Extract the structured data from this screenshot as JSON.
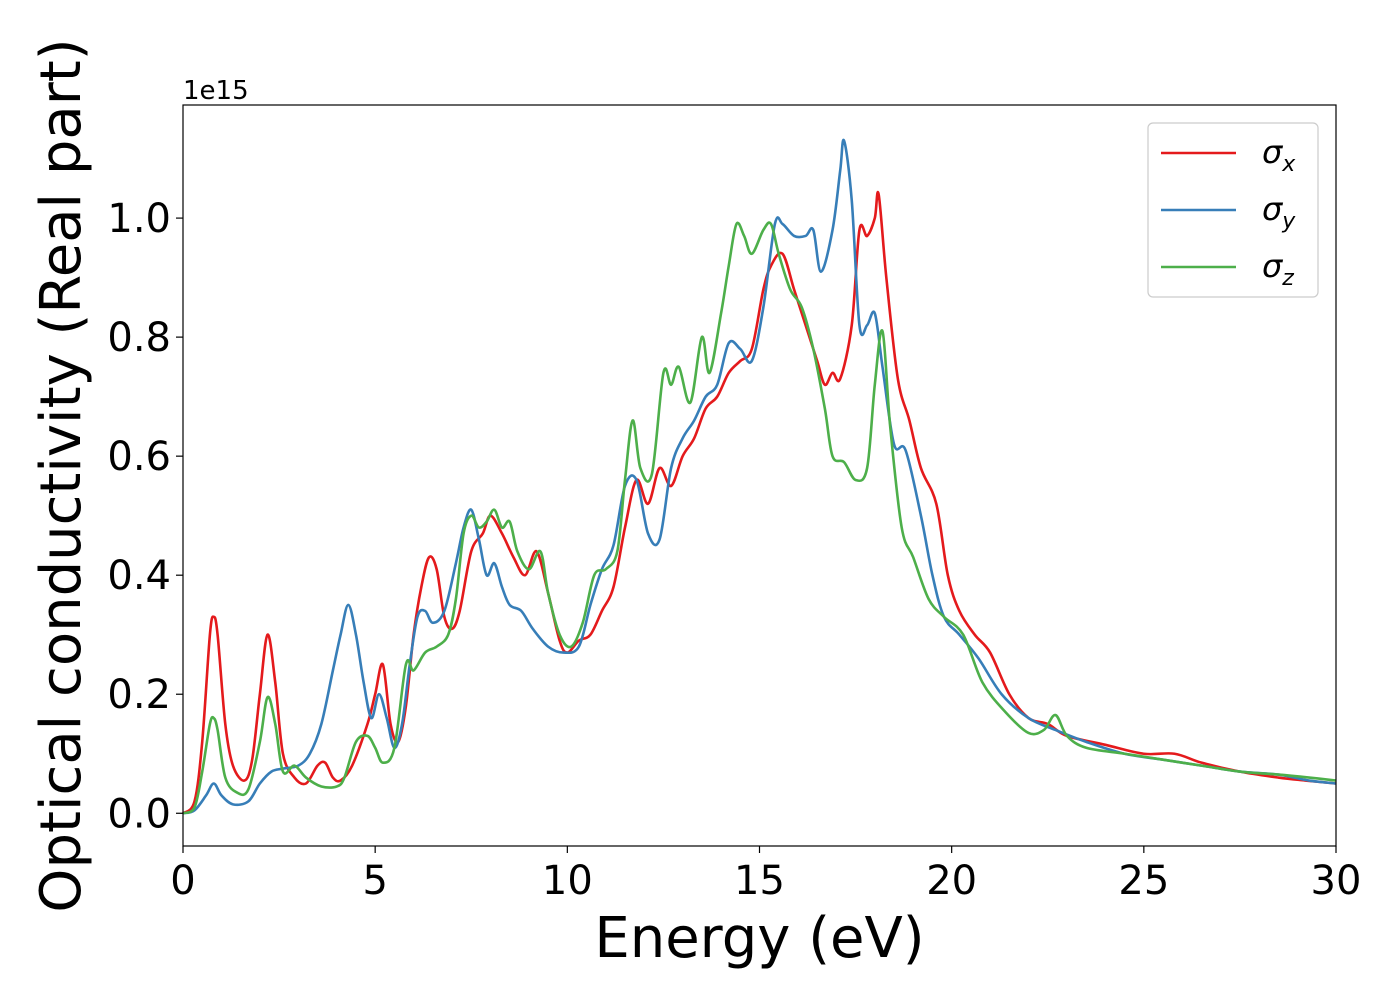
{
  "chart_data": {
    "type": "line",
    "xlabel": "Energy (eV)",
    "ylabel": "Optical conductivity (Real part)",
    "y_offset_text": "1e15",
    "xlim": [
      0,
      30
    ],
    "ylim": [
      -0.055,
      1.19
    ],
    "x_ticks": [
      0,
      5,
      10,
      15,
      20,
      25,
      30
    ],
    "x_tick_labels": [
      "0",
      "5",
      "10",
      "15",
      "20",
      "25",
      "30"
    ],
    "y_ticks": [
      0.0,
      0.2,
      0.4,
      0.6,
      0.8,
      1.0
    ],
    "y_tick_labels": [
      "0.0",
      "0.2",
      "0.4",
      "0.6",
      "0.8",
      "1.0"
    ],
    "grid": false,
    "legend_position": "top-right",
    "series": [
      {
        "name": "σx",
        "symbol": "σ",
        "subscript": "x",
        "color": "#e41a1c",
        "points": [
          [
            0,
            0.0
          ],
          [
            0.3,
            0.02
          ],
          [
            0.5,
            0.12
          ],
          [
            0.7,
            0.3
          ],
          [
            0.8,
            0.33
          ],
          [
            0.9,
            0.3
          ],
          [
            1.1,
            0.15
          ],
          [
            1.3,
            0.08
          ],
          [
            1.6,
            0.055
          ],
          [
            1.8,
            0.09
          ],
          [
            2.0,
            0.2
          ],
          [
            2.2,
            0.3
          ],
          [
            2.4,
            0.22
          ],
          [
            2.6,
            0.1
          ],
          [
            2.9,
            0.06
          ],
          [
            3.2,
            0.05
          ],
          [
            3.5,
            0.08
          ],
          [
            3.7,
            0.085
          ],
          [
            3.9,
            0.06
          ],
          [
            4.1,
            0.055
          ],
          [
            4.4,
            0.08
          ],
          [
            4.8,
            0.15
          ],
          [
            5.0,
            0.2
          ],
          [
            5.2,
            0.25
          ],
          [
            5.4,
            0.15
          ],
          [
            5.6,
            0.12
          ],
          [
            5.8,
            0.18
          ],
          [
            6.0,
            0.3
          ],
          [
            6.2,
            0.38
          ],
          [
            6.4,
            0.43
          ],
          [
            6.6,
            0.41
          ],
          [
            6.8,
            0.33
          ],
          [
            7.0,
            0.31
          ],
          [
            7.2,
            0.34
          ],
          [
            7.5,
            0.44
          ],
          [
            7.8,
            0.47
          ],
          [
            8.0,
            0.5
          ],
          [
            8.3,
            0.47
          ],
          [
            8.6,
            0.43
          ],
          [
            8.9,
            0.4
          ],
          [
            9.2,
            0.44
          ],
          [
            9.5,
            0.37
          ],
          [
            9.8,
            0.29
          ],
          [
            10.0,
            0.27
          ],
          [
            10.3,
            0.29
          ],
          [
            10.6,
            0.3
          ],
          [
            10.9,
            0.34
          ],
          [
            11.2,
            0.38
          ],
          [
            11.5,
            0.48
          ],
          [
            11.8,
            0.56
          ],
          [
            12.1,
            0.52
          ],
          [
            12.4,
            0.58
          ],
          [
            12.7,
            0.55
          ],
          [
            13.0,
            0.6
          ],
          [
            13.3,
            0.63
          ],
          [
            13.6,
            0.68
          ],
          [
            13.9,
            0.7
          ],
          [
            14.2,
            0.74
          ],
          [
            14.5,
            0.76
          ],
          [
            14.8,
            0.78
          ],
          [
            15.1,
            0.88
          ],
          [
            15.3,
            0.92
          ],
          [
            15.6,
            0.94
          ],
          [
            15.9,
            0.88
          ],
          [
            16.2,
            0.82
          ],
          [
            16.5,
            0.76
          ],
          [
            16.7,
            0.72
          ],
          [
            16.9,
            0.74
          ],
          [
            17.1,
            0.73
          ],
          [
            17.4,
            0.82
          ],
          [
            17.6,
            0.98
          ],
          [
            17.8,
            0.97
          ],
          [
            18.0,
            1.0
          ],
          [
            18.1,
            1.04
          ],
          [
            18.3,
            0.9
          ],
          [
            18.6,
            0.73
          ],
          [
            18.9,
            0.66
          ],
          [
            19.2,
            0.58
          ],
          [
            19.6,
            0.52
          ],
          [
            19.9,
            0.4
          ],
          [
            20.2,
            0.34
          ],
          [
            20.6,
            0.3
          ],
          [
            21.0,
            0.27
          ],
          [
            21.5,
            0.2
          ],
          [
            22.0,
            0.16
          ],
          [
            22.5,
            0.15
          ],
          [
            23.0,
            0.13
          ],
          [
            24.0,
            0.115
          ],
          [
            25.0,
            0.1
          ],
          [
            25.8,
            0.1
          ],
          [
            26.5,
            0.085
          ],
          [
            27.5,
            0.07
          ],
          [
            28.5,
            0.06
          ],
          [
            29.2,
            0.055
          ],
          [
            30.0,
            0.05
          ]
        ]
      },
      {
        "name": "σy",
        "symbol": "σ",
        "subscript": "y",
        "color": "#377eb8",
        "points": [
          [
            0,
            0.0
          ],
          [
            0.3,
            0.005
          ],
          [
            0.6,
            0.03
          ],
          [
            0.8,
            0.05
          ],
          [
            1.0,
            0.03
          ],
          [
            1.3,
            0.015
          ],
          [
            1.7,
            0.02
          ],
          [
            2.0,
            0.05
          ],
          [
            2.3,
            0.07
          ],
          [
            2.6,
            0.075
          ],
          [
            3.0,
            0.08
          ],
          [
            3.3,
            0.1
          ],
          [
            3.6,
            0.15
          ],
          [
            3.9,
            0.24
          ],
          [
            4.1,
            0.3
          ],
          [
            4.3,
            0.35
          ],
          [
            4.5,
            0.3
          ],
          [
            4.7,
            0.22
          ],
          [
            4.9,
            0.16
          ],
          [
            5.1,
            0.2
          ],
          [
            5.3,
            0.16
          ],
          [
            5.5,
            0.11
          ],
          [
            5.7,
            0.15
          ],
          [
            5.9,
            0.25
          ],
          [
            6.1,
            0.33
          ],
          [
            6.3,
            0.34
          ],
          [
            6.5,
            0.32
          ],
          [
            6.8,
            0.34
          ],
          [
            7.1,
            0.42
          ],
          [
            7.3,
            0.48
          ],
          [
            7.5,
            0.51
          ],
          [
            7.7,
            0.46
          ],
          [
            7.9,
            0.4
          ],
          [
            8.1,
            0.42
          ],
          [
            8.3,
            0.38
          ],
          [
            8.5,
            0.35
          ],
          [
            8.8,
            0.34
          ],
          [
            9.1,
            0.31
          ],
          [
            9.5,
            0.28
          ],
          [
            9.9,
            0.27
          ],
          [
            10.3,
            0.28
          ],
          [
            10.6,
            0.35
          ],
          [
            10.9,
            0.41
          ],
          [
            11.2,
            0.45
          ],
          [
            11.5,
            0.55
          ],
          [
            11.8,
            0.56
          ],
          [
            12.1,
            0.47
          ],
          [
            12.4,
            0.46
          ],
          [
            12.7,
            0.58
          ],
          [
            13.0,
            0.63
          ],
          [
            13.3,
            0.66
          ],
          [
            13.6,
            0.7
          ],
          [
            13.9,
            0.72
          ],
          [
            14.2,
            0.79
          ],
          [
            14.5,
            0.78
          ],
          [
            14.8,
            0.76
          ],
          [
            15.1,
            0.85
          ],
          [
            15.4,
            0.99
          ],
          [
            15.6,
            0.99
          ],
          [
            15.9,
            0.97
          ],
          [
            16.2,
            0.97
          ],
          [
            16.4,
            0.98
          ],
          [
            16.6,
            0.91
          ],
          [
            16.9,
            0.98
          ],
          [
            17.1,
            1.08
          ],
          [
            17.2,
            1.13
          ],
          [
            17.4,
            1.03
          ],
          [
            17.6,
            0.82
          ],
          [
            17.8,
            0.82
          ],
          [
            18.0,
            0.84
          ],
          [
            18.2,
            0.75
          ],
          [
            18.5,
            0.62
          ],
          [
            18.8,
            0.61
          ],
          [
            19.2,
            0.5
          ],
          [
            19.5,
            0.4
          ],
          [
            19.8,
            0.33
          ],
          [
            20.2,
            0.3
          ],
          [
            20.7,
            0.26
          ],
          [
            21.3,
            0.2
          ],
          [
            22.0,
            0.16
          ],
          [
            22.7,
            0.14
          ],
          [
            23.5,
            0.12
          ],
          [
            24.5,
            0.1
          ],
          [
            25.5,
            0.09
          ],
          [
            26.5,
            0.08
          ],
          [
            27.5,
            0.07
          ],
          [
            28.5,
            0.065
          ],
          [
            29.3,
            0.055
          ],
          [
            30.0,
            0.05
          ]
        ]
      },
      {
        "name": "σz",
        "symbol": "σ",
        "subscript": "z",
        "color": "#4daf4a",
        "points": [
          [
            0,
            0.0
          ],
          [
            0.3,
            0.01
          ],
          [
            0.5,
            0.07
          ],
          [
            0.7,
            0.15
          ],
          [
            0.8,
            0.16
          ],
          [
            0.9,
            0.14
          ],
          [
            1.1,
            0.06
          ],
          [
            1.4,
            0.035
          ],
          [
            1.7,
            0.04
          ],
          [
            2.0,
            0.12
          ],
          [
            2.2,
            0.195
          ],
          [
            2.4,
            0.15
          ],
          [
            2.6,
            0.07
          ],
          [
            2.9,
            0.08
          ],
          [
            3.2,
            0.06
          ],
          [
            3.6,
            0.045
          ],
          [
            4.0,
            0.045
          ],
          [
            4.2,
            0.06
          ],
          [
            4.5,
            0.12
          ],
          [
            4.8,
            0.13
          ],
          [
            5.0,
            0.11
          ],
          [
            5.2,
            0.085
          ],
          [
            5.5,
            0.11
          ],
          [
            5.8,
            0.25
          ],
          [
            6.0,
            0.24
          ],
          [
            6.3,
            0.27
          ],
          [
            6.6,
            0.28
          ],
          [
            6.9,
            0.3
          ],
          [
            7.1,
            0.36
          ],
          [
            7.3,
            0.47
          ],
          [
            7.5,
            0.5
          ],
          [
            7.7,
            0.48
          ],
          [
            7.9,
            0.49
          ],
          [
            8.1,
            0.51
          ],
          [
            8.3,
            0.48
          ],
          [
            8.5,
            0.49
          ],
          [
            8.7,
            0.44
          ],
          [
            9.0,
            0.41
          ],
          [
            9.3,
            0.44
          ],
          [
            9.5,
            0.37
          ],
          [
            9.8,
            0.3
          ],
          [
            10.1,
            0.28
          ],
          [
            10.4,
            0.32
          ],
          [
            10.7,
            0.4
          ],
          [
            11.0,
            0.41
          ],
          [
            11.3,
            0.44
          ],
          [
            11.5,
            0.56
          ],
          [
            11.7,
            0.66
          ],
          [
            11.9,
            0.58
          ],
          [
            12.2,
            0.57
          ],
          [
            12.5,
            0.74
          ],
          [
            12.7,
            0.72
          ],
          [
            12.9,
            0.75
          ],
          [
            13.2,
            0.69
          ],
          [
            13.5,
            0.8
          ],
          [
            13.7,
            0.74
          ],
          [
            14.0,
            0.84
          ],
          [
            14.2,
            0.92
          ],
          [
            14.4,
            0.99
          ],
          [
            14.6,
            0.97
          ],
          [
            14.8,
            0.94
          ],
          [
            15.1,
            0.98
          ],
          [
            15.3,
            0.99
          ],
          [
            15.5,
            0.94
          ],
          [
            15.8,
            0.88
          ],
          [
            16.1,
            0.85
          ],
          [
            16.4,
            0.78
          ],
          [
            16.7,
            0.68
          ],
          [
            16.9,
            0.6
          ],
          [
            17.2,
            0.59
          ],
          [
            17.5,
            0.56
          ],
          [
            17.8,
            0.58
          ],
          [
            18.0,
            0.72
          ],
          [
            18.2,
            0.81
          ],
          [
            18.4,
            0.65
          ],
          [
            18.7,
            0.48
          ],
          [
            19.0,
            0.43
          ],
          [
            19.4,
            0.36
          ],
          [
            19.8,
            0.33
          ],
          [
            20.3,
            0.3
          ],
          [
            20.8,
            0.22
          ],
          [
            21.4,
            0.17
          ],
          [
            22.0,
            0.135
          ],
          [
            22.4,
            0.14
          ],
          [
            22.7,
            0.165
          ],
          [
            23.0,
            0.13
          ],
          [
            23.5,
            0.11
          ],
          [
            24.5,
            0.1
          ],
          [
            25.5,
            0.09
          ],
          [
            26.5,
            0.08
          ],
          [
            27.5,
            0.07
          ],
          [
            28.5,
            0.065
          ],
          [
            29.3,
            0.06
          ],
          [
            30.0,
            0.055
          ]
        ]
      }
    ]
  }
}
